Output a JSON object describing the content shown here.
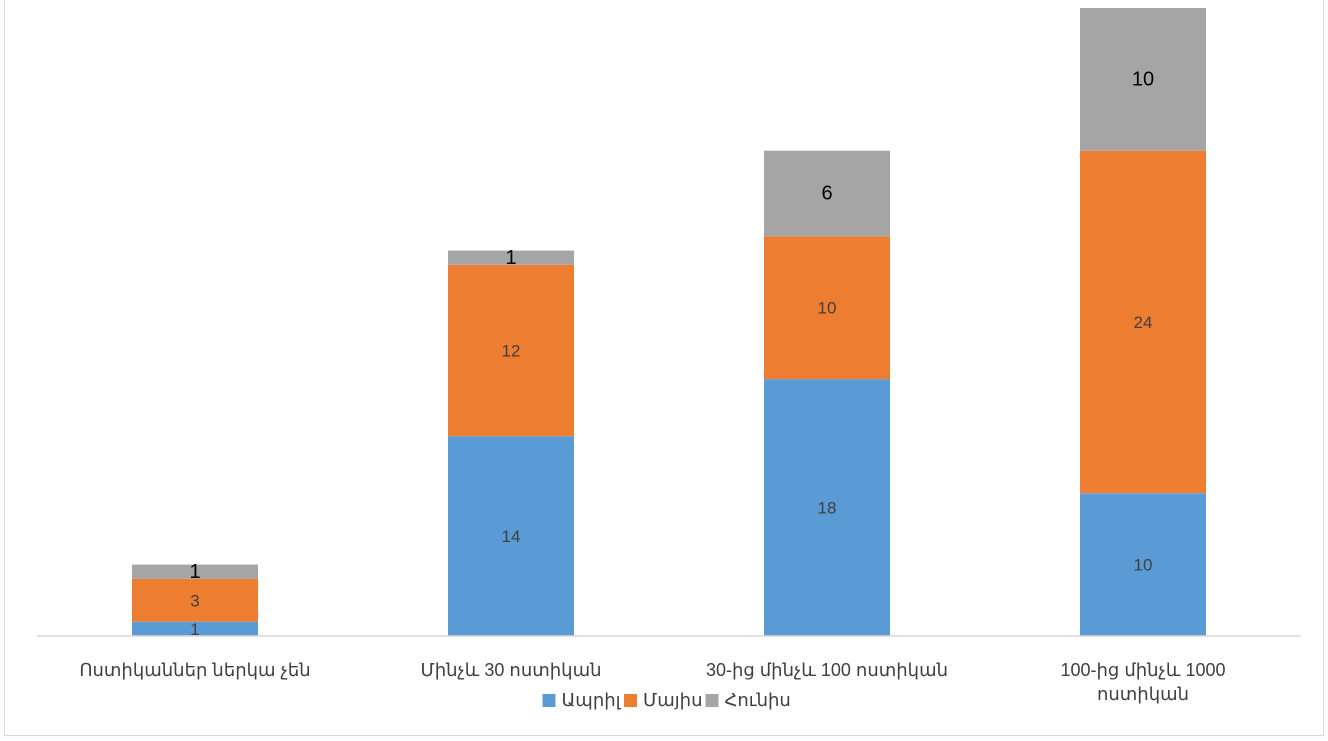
{
  "chart_data": {
    "type": "bar",
    "stacked": true,
    "categories": [
      [
        "Ոստիկաններ ներկա չեն"
      ],
      [
        "Մինչև 30 ոստիկան"
      ],
      [
        "30-ից մինչև 100 ոստիկան"
      ],
      [
        "100-ից մինչև 1000",
        "ոստիկան"
      ]
    ],
    "series": [
      {
        "name": "Ապրիլ",
        "color": "#5b9bd5",
        "values": [
          1,
          14,
          18,
          10
        ],
        "label_dark": false
      },
      {
        "name": "Մայիս",
        "color": "#ed7d31",
        "values": [
          3,
          12,
          10,
          24
        ],
        "label_dark": false
      },
      {
        "name": "Հունիս",
        "color": "#a5a5a5",
        "values": [
          1,
          1,
          6,
          10
        ],
        "label_dark": true
      }
    ],
    "ylim": [
      0,
      44
    ],
    "grid": false,
    "legend_position": "bottom"
  }
}
